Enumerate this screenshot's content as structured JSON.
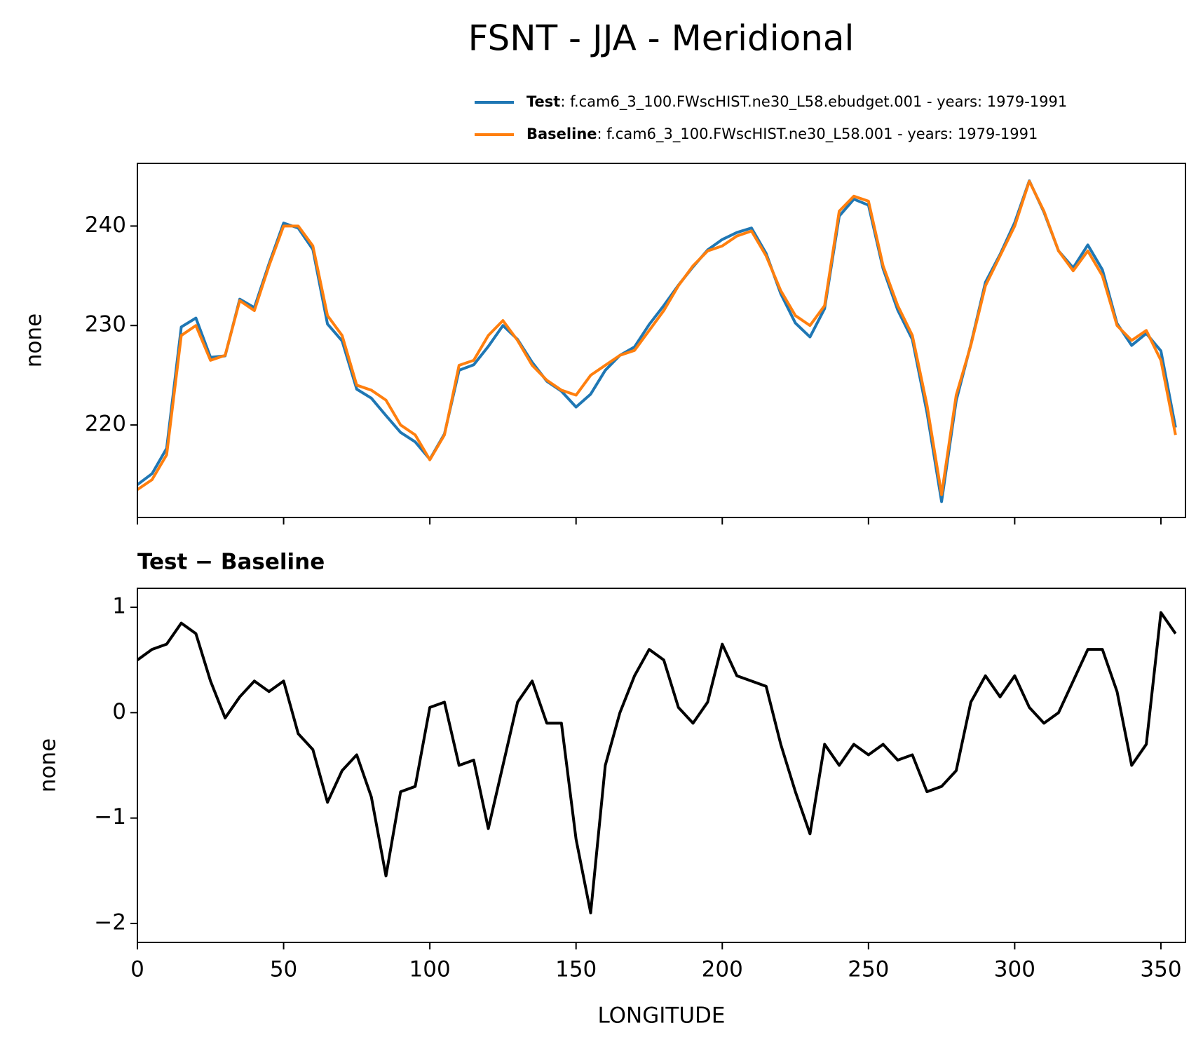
{
  "title": "FSNT - JJA - Meridional",
  "chart_data": [
    {
      "type": "line",
      "ylabel": "none",
      "x": [
        0,
        5,
        10,
        15,
        20,
        25,
        30,
        35,
        40,
        45,
        50,
        55,
        60,
        65,
        70,
        75,
        80,
        85,
        90,
        95,
        100,
        105,
        110,
        115,
        120,
        125,
        130,
        135,
        140,
        145,
        150,
        155,
        160,
        165,
        170,
        175,
        180,
        185,
        190,
        195,
        200,
        205,
        210,
        215,
        220,
        225,
        230,
        235,
        240,
        245,
        250,
        255,
        260,
        265,
        270,
        275,
        280,
        285,
        290,
        295,
        300,
        305,
        310,
        315,
        320,
        325,
        330,
        335,
        340,
        345,
        350,
        355
      ],
      "series": [
        {
          "name": "Test",
          "description": ": f.cam6_3_100.FWscHIST.ne30_L58.ebudget.001 - years: 1979-1991",
          "color": "#1f77b4",
          "values": [
            214.0,
            215.1,
            217.65,
            229.85,
            230.75,
            226.8,
            226.95,
            232.65,
            231.8,
            236.2,
            240.3,
            239.8,
            237.65,
            230.15,
            228.45,
            223.6,
            222.7,
            220.95,
            219.25,
            218.3,
            216.55,
            219.1,
            225.5,
            226.05,
            227.9,
            230.0,
            228.6,
            226.3,
            224.4,
            223.4,
            221.8,
            223.1,
            225.5,
            227.0,
            227.85,
            230.1,
            232.0,
            234.05,
            235.9,
            237.6,
            238.65,
            239.35,
            239.8,
            237.25,
            233.2,
            230.25,
            228.85,
            231.7,
            241.0,
            242.7,
            242.1,
            235.7,
            231.55,
            228.6,
            221.25,
            212.3,
            222.45,
            228.1,
            234.35,
            237.15,
            240.35,
            244.55,
            241.4,
            237.5,
            235.8,
            238.1,
            235.6,
            230.2,
            228.0,
            229.2,
            227.45,
            219.75
          ]
        },
        {
          "name": "Baseline",
          "description": ": f.cam6_3_100.FWscHIST.ne30_L58.001 - years: 1979-1991",
          "color": "#ff7f0e",
          "values": [
            213.5,
            214.5,
            217,
            229,
            230,
            226.5,
            227,
            232.5,
            231.5,
            236,
            240,
            240,
            238,
            231,
            229,
            224,
            223.5,
            222.5,
            220,
            219,
            216.5,
            219,
            226,
            226.5,
            229,
            230.5,
            228.5,
            226,
            224.5,
            223.5,
            223,
            225,
            226,
            227,
            227.5,
            229.5,
            231.5,
            234,
            236,
            237.5,
            238,
            239,
            239.5,
            237,
            233.5,
            231,
            230,
            232,
            241.5,
            243,
            242.5,
            236,
            232,
            229,
            222,
            213,
            223,
            228,
            234,
            237,
            240,
            244.5,
            241.5,
            237.5,
            235.5,
            237.5,
            235,
            230,
            228.5,
            229.5,
            226.5,
            219
          ]
        }
      ],
      "xlim": [
        0,
        358.4
      ],
      "xticks": [
        0,
        50,
        100,
        150,
        200,
        250,
        300,
        350
      ],
      "xtick_labels_shown": false,
      "ylim": [
        210.7,
        246.3
      ],
      "yticks": [
        220,
        230,
        240
      ],
      "legend": "upper right"
    },
    {
      "type": "line",
      "title": "Test − Baseline",
      "ylabel": "none",
      "xlabel": "LONGITUDE",
      "x": [
        0,
        5,
        10,
        15,
        20,
        25,
        30,
        35,
        40,
        45,
        50,
        55,
        60,
        65,
        70,
        75,
        80,
        85,
        90,
        95,
        100,
        105,
        110,
        115,
        120,
        125,
        130,
        135,
        140,
        145,
        150,
        155,
        160,
        165,
        170,
        175,
        180,
        185,
        190,
        195,
        200,
        205,
        210,
        215,
        220,
        225,
        230,
        235,
        240,
        245,
        250,
        255,
        260,
        265,
        270,
        275,
        280,
        285,
        290,
        295,
        300,
        305,
        310,
        315,
        320,
        325,
        330,
        335,
        340,
        345,
        350,
        355
      ],
      "series": [
        {
          "color": "#000000",
          "values": [
            0.5,
            0.6,
            0.65,
            0.85,
            0.75,
            0.3,
            -0.05,
            0.15,
            0.3,
            0.2,
            0.3,
            -0.2,
            -0.35,
            -0.85,
            -0.55,
            -0.4,
            -0.8,
            -1.55,
            -0.75,
            -0.7,
            0.05,
            0.1,
            -0.5,
            -0.45,
            -1.1,
            -0.5,
            0.1,
            0.3,
            -0.1,
            -0.1,
            -1.2,
            -1.9,
            -0.5,
            0.0,
            0.35,
            0.6,
            0.5,
            0.05,
            -0.1,
            0.1,
            0.65,
            0.35,
            0.3,
            0.25,
            -0.3,
            -0.75,
            -1.15,
            -0.3,
            -0.5,
            -0.3,
            -0.4,
            -0.3,
            -0.45,
            -0.4,
            -0.75,
            -0.7,
            -0.55,
            0.1,
            0.35,
            0.15,
            0.35,
            0.05,
            -0.1,
            0.0,
            0.3,
            0.6,
            0.6,
            0.2,
            -0.5,
            -0.3,
            0.95,
            0.75
          ]
        }
      ],
      "xlim": [
        0,
        358.4
      ],
      "xticks": [
        0,
        50,
        100,
        150,
        200,
        250,
        300,
        350
      ],
      "xtick_labels_shown": true,
      "ylim": [
        -2.18,
        1.18
      ],
      "yticks": [
        {
          "value": -2,
          "label": "−2"
        },
        {
          "value": -1,
          "label": "−1"
        },
        0,
        1
      ]
    }
  ]
}
